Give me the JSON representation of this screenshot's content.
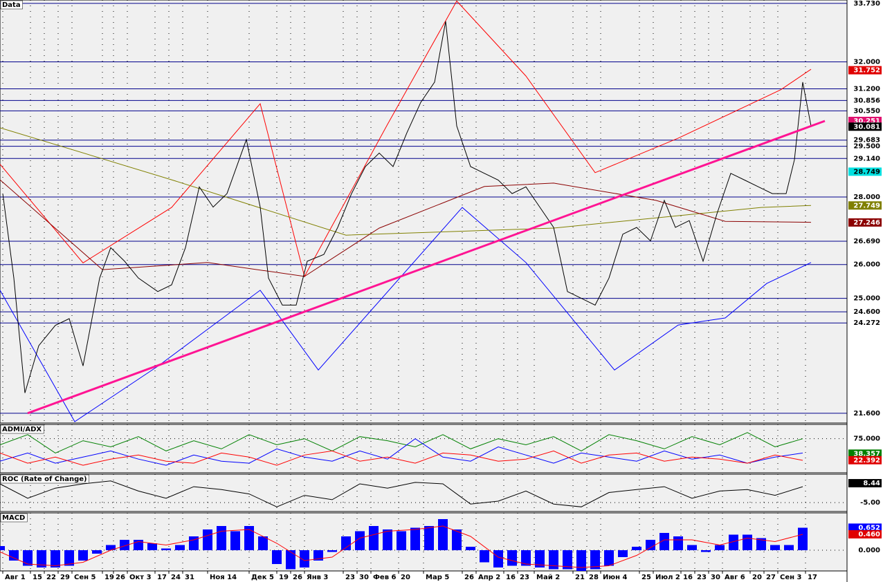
{
  "chart_data": [
    {
      "type": "line",
      "title": "Data",
      "xlim": [
        0,
        306
      ],
      "ylim": [
        21.31,
        33.83
      ],
      "yticks": [
        {
          "value": 33.73,
          "label": "33.730"
        },
        {
          "value": 32,
          "label": "32.000"
        },
        {
          "value": 31.2,
          "label": "31.200"
        },
        30.856,
        {
          "value": 30.55,
          "label": "30.550"
        },
        29.683,
        {
          "value": 29.5,
          "label": "29.500"
        },
        {
          "value": 29.14,
          "label": "29.140"
        },
        {
          "value": 28,
          "label": "28.000"
        },
        {
          "value": 26.69,
          "label": "26.690"
        },
        {
          "value": 26,
          "label": "26.000"
        },
        {
          "value": 25,
          "label": "25.000"
        },
        {
          "value": 24.6,
          "label": "24.600"
        },
        24.272,
        {
          "value": 21.6,
          "label": "21.600"
        }
      ],
      "grid_color": "#00008b",
      "markers": [
        {
          "value": 31.752,
          "color": "#e00000"
        },
        {
          "value": 30.251,
          "color": "#e0106e"
        },
        {
          "value": 30.081,
          "color": "#000000"
        },
        {
          "value": 28.749,
          "color": "#00e0e0"
        },
        {
          "value": 27.749,
          "color": "#808000"
        },
        {
          "value": 27.246,
          "color": "#8b0000"
        }
      ],
      "series": [
        {
          "color": "#ff0000",
          "x": [
            0,
            30,
            62,
            94,
            110,
            140,
            165,
            190,
            215,
            245,
            282,
            293
          ],
          "values": [
            28.97,
            26.05,
            27.69,
            30.76,
            25.65,
            30.15,
            33.8,
            31.58,
            28.72,
            29.74,
            31.17,
            31.78
          ]
        },
        {
          "color": "#0000ff",
          "x": [
            0,
            27,
            57,
            94,
            115,
            167,
            190,
            222,
            245,
            262,
            277,
            293
          ],
          "values": [
            25.24,
            21.35,
            22.99,
            25.24,
            22.88,
            27.69,
            26.06,
            22.88,
            24.21,
            24.42,
            25.44,
            26.06
          ]
        },
        {
          "color": "#808000",
          "x": [
            0,
            62,
            125,
            200,
            275,
            293
          ],
          "values": [
            30.05,
            28.51,
            26.87,
            27.08,
            27.69,
            27.75
          ]
        },
        {
          "color": "#8b0000",
          "x": [
            0,
            37,
            75,
            110,
            137,
            175,
            200,
            237,
            262,
            293
          ],
          "values": [
            28.51,
            25.85,
            26.06,
            25.65,
            27.08,
            28.31,
            28.41,
            27.9,
            27.28,
            27.25
          ]
        },
        {
          "color": "#000000",
          "x": [
            1,
            5,
            9,
            14,
            20,
            25,
            30,
            36,
            40,
            45,
            50,
            57,
            62,
            67,
            72,
            77,
            82,
            89,
            94,
            97,
            102,
            107,
            111,
            117,
            122,
            127,
            132,
            137,
            142,
            147,
            152,
            157,
            161,
            165,
            170,
            175,
            180,
            185,
            190,
            195,
            200,
            205,
            210,
            215,
            220,
            225,
            230,
            235,
            240,
            244,
            249,
            254,
            259,
            264,
            269,
            274,
            279,
            284,
            287,
            290,
            293
          ],
          "values": [
            28.1,
            25.6,
            22.2,
            23.6,
            24.2,
            24.4,
            23,
            25.6,
            26.5,
            26.1,
            25.6,
            25.2,
            25.4,
            26.5,
            28.3,
            27.7,
            28.1,
            29.7,
            27.7,
            25.6,
            24.8,
            24.8,
            26.1,
            26.3,
            27.1,
            28.1,
            28.9,
            29.3,
            28.9,
            29.9,
            30.8,
            31.4,
            33.2,
            30.1,
            28.9,
            28.7,
            28.5,
            28.1,
            28.3,
            27.7,
            27.1,
            25.2,
            25,
            24.8,
            25.6,
            26.9,
            27.1,
            26.7,
            27.9,
            27.1,
            27.3,
            26.1,
            27.5,
            28.7,
            28.5,
            28.3,
            28.1,
            28.1,
            29.1,
            31.4,
            30.1
          ]
        },
        {
          "color": "#ff1493",
          "width": 3,
          "x": [
            10,
            298
          ],
          "values": [
            21.6,
            30.25
          ]
        }
      ]
    },
    {
      "type": "line",
      "title": "ADMI/ADX",
      "xlim": [
        0,
        306
      ],
      "ylim": [
        -8.5,
        110
      ],
      "yticks": [
        {
          "value": 75,
          "label": "75.000"
        }
      ],
      "grid_color": "#000000",
      "markers": [
        {
          "value": 38.357,
          "color": "#008000"
        },
        {
          "value": 22.392,
          "color": "#e00000"
        }
      ],
      "series": [
        {
          "color": "#008000",
          "x": [
            0,
            10,
            20,
            30,
            40,
            50,
            60,
            70,
            80,
            90,
            100,
            110,
            120,
            130,
            140,
            150,
            160,
            170,
            180,
            190,
            200,
            210,
            220,
            230,
            240,
            250,
            260,
            270,
            280,
            290
          ],
          "values": [
            60,
            85,
            40,
            70,
            55,
            80,
            45,
            70,
            50,
            85,
            60,
            75,
            45,
            80,
            70,
            55,
            85,
            50,
            75,
            60,
            80,
            45,
            85,
            70,
            50,
            80,
            60,
            90,
            55,
            75
          ]
        },
        {
          "color": "#0000ff",
          "x": [
            0,
            10,
            20,
            30,
            40,
            50,
            60,
            70,
            80,
            90,
            100,
            110,
            120,
            130,
            140,
            150,
            160,
            170,
            180,
            190,
            200,
            210,
            220,
            230,
            240,
            250,
            260,
            270,
            280,
            290
          ],
          "values": [
            20,
            40,
            15,
            30,
            45,
            25,
            10,
            35,
            20,
            15,
            50,
            30,
            20,
            45,
            25,
            75,
            30,
            20,
            55,
            35,
            15,
            40,
            30,
            20,
            45,
            25,
            35,
            15,
            30,
            40
          ]
        },
        {
          "color": "#ff0000",
          "x": [
            0,
            10,
            20,
            30,
            40,
            50,
            60,
            70,
            80,
            90,
            100,
            110,
            120,
            130,
            140,
            150,
            160,
            170,
            180,
            190,
            200,
            210,
            220,
            230,
            240,
            250,
            260,
            270,
            280,
            290
          ],
          "values": [
            40,
            15,
            30,
            10,
            25,
            35,
            20,
            15,
            40,
            30,
            10,
            35,
            45,
            20,
            30,
            15,
            40,
            35,
            20,
            25,
            45,
            15,
            35,
            40,
            20,
            30,
            25,
            15,
            35,
            22
          ]
        }
      ]
    },
    {
      "type": "line",
      "title": "ROC (Rate of Change)",
      "xlim": [
        0,
        306
      ],
      "ylim": [
        -11.2,
        14.7
      ],
      "yticks": [
        {
          "value": -5,
          "label": "-5.00"
        }
      ],
      "grid_color": "#000000",
      "markers": [
        {
          "value": 8.44,
          "color": "#000000"
        }
      ],
      "series": [
        {
          "color": "#000000",
          "x": [
            0,
            10,
            20,
            30,
            40,
            50,
            60,
            70,
            80,
            90,
            100,
            110,
            120,
            130,
            140,
            150,
            160,
            170,
            180,
            190,
            200,
            210,
            220,
            230,
            240,
            250,
            260,
            270,
            280,
            290
          ],
          "values": [
            8,
            -2,
            5,
            8,
            10,
            3,
            -2,
            6,
            4,
            1,
            -8,
            0,
            -3,
            8,
            5,
            9,
            8,
            -6,
            -4,
            3,
            -6,
            -8,
            2,
            4,
            6,
            -2,
            3,
            4,
            0,
            6
          ]
        }
      ]
    },
    {
      "type": "line",
      "title": "MACD",
      "xlim": [
        0,
        306
      ],
      "ylim": [
        -0.6,
        1.08
      ],
      "yticks": [
        {
          "value": 0,
          "label": "0.000"
        }
      ],
      "grid_color": "#000000",
      "markers": [
        {
          "value": 0.652,
          "color": "#0000ff"
        },
        {
          "value": 0.46,
          "label": "0.460",
          "color": "#e00000"
        }
      ],
      "xticks": [
        {
          "value": 1,
          "label": "Авг 1"
        },
        {
          "value": 11,
          "label": "15"
        },
        {
          "value": 16,
          "label": "22"
        },
        {
          "value": 21,
          "label": "29"
        },
        {
          "value": 26,
          "label": "Сен 5"
        },
        {
          "value": 37,
          "label": "19"
        },
        {
          "value": 41,
          "label": "26"
        },
        {
          "value": 46,
          "label": "Окт 3"
        },
        {
          "value": 56,
          "label": "17"
        },
        {
          "value": 61,
          "label": "24"
        },
        {
          "value": 66,
          "label": "31"
        },
        {
          "value": 75,
          "label": "Ноя 14"
        },
        {
          "value": 90,
          "label": "Дек 5"
        },
        {
          "value": 100,
          "label": "19"
        },
        {
          "value": 105,
          "label": "26"
        },
        {
          "value": 110,
          "label": "Янв 3"
        },
        {
          "value": 124,
          "label": "23"
        },
        {
          "value": 129,
          "label": "30"
        },
        {
          "value": 134,
          "label": "Фев 6"
        },
        {
          "value": 144,
          "label": "20"
        },
        {
          "value": 153,
          "label": "Мар 5"
        },
        {
          "value": 167,
          "label": "26"
        },
        {
          "value": 172,
          "label": "Апр 2"
        },
        {
          "value": 182,
          "label": "16"
        },
        {
          "value": 187,
          "label": "23"
        },
        {
          "value": 193,
          "label": "Май 2"
        },
        {
          "value": 207,
          "label": "21"
        },
        {
          "value": 212,
          "label": "28"
        },
        {
          "value": 217,
          "label": "Июн 4"
        },
        {
          "value": 231,
          "label": "25"
        },
        {
          "value": 236,
          "label": "Июл 2"
        },
        {
          "value": 246,
          "label": "16"
        },
        {
          "value": 251,
          "label": "23"
        },
        {
          "value": 256,
          "label": "30"
        },
        {
          "value": 261,
          "label": "Авг 6"
        },
        {
          "value": 271,
          "label": "20"
        },
        {
          "value": 276,
          "label": "27"
        },
        {
          "value": 281,
          "label": "Сен 3"
        },
        {
          "value": 291,
          "label": "17"
        }
      ],
      "series": [
        {
          "color": "#0000ff",
          "style": "bar",
          "x": [
            0,
            5,
            10,
            15,
            20,
            25,
            30,
            35,
            40,
            45,
            50,
            55,
            60,
            65,
            70,
            75,
            80,
            85,
            90,
            95,
            100,
            105,
            110,
            115,
            120,
            125,
            130,
            135,
            140,
            145,
            150,
            155,
            160,
            165,
            170,
            175,
            180,
            185,
            190,
            195,
            200,
            205,
            210,
            215,
            220,
            225,
            230,
            235,
            240,
            245,
            250,
            255,
            260,
            265,
            270,
            275,
            280,
            285,
            290
          ],
          "values": [
            0.12,
            -0.3,
            -0.45,
            -0.5,
            -0.5,
            -0.45,
            -0.3,
            -0.1,
            0.15,
            0.3,
            0.3,
            0.2,
            0.05,
            0.15,
            0.4,
            0.6,
            0.7,
            0.55,
            0.7,
            0.4,
            -0.4,
            -0.55,
            -0.5,
            -0.3,
            -0.05,
            0.4,
            0.55,
            0.7,
            0.6,
            0.55,
            0.65,
            0.7,
            0.9,
            0.6,
            0.1,
            -0.35,
            -0.5,
            -0.45,
            -0.45,
            -0.5,
            -0.55,
            -0.55,
            -0.6,
            -0.55,
            -0.45,
            -0.2,
            0.1,
            0.3,
            0.5,
            0.4,
            0.15,
            -0.05,
            0.15,
            0.45,
            0.45,
            0.35,
            0.15,
            0.15,
            0.65
          ]
        },
        {
          "color": "#ff0000",
          "x": [
            0,
            10,
            20,
            30,
            40,
            50,
            60,
            70,
            80,
            90,
            100,
            110,
            120,
            130,
            140,
            150,
            160,
            170,
            180,
            190,
            200,
            210,
            220,
            230,
            240,
            250,
            260,
            270,
            280,
            290
          ],
          "values": [
            -0.05,
            -0.4,
            -0.45,
            -0.35,
            0,
            0.25,
            0.15,
            0.3,
            0.55,
            0.6,
            0.2,
            -0.3,
            -0.2,
            0.35,
            0.55,
            0.6,
            0.7,
            0.4,
            -0.2,
            -0.4,
            -0.45,
            -0.5,
            -0.45,
            -0.15,
            0.3,
            0.3,
            0.15,
            0.35,
            0.25,
            0.46
          ]
        }
      ]
    }
  ]
}
